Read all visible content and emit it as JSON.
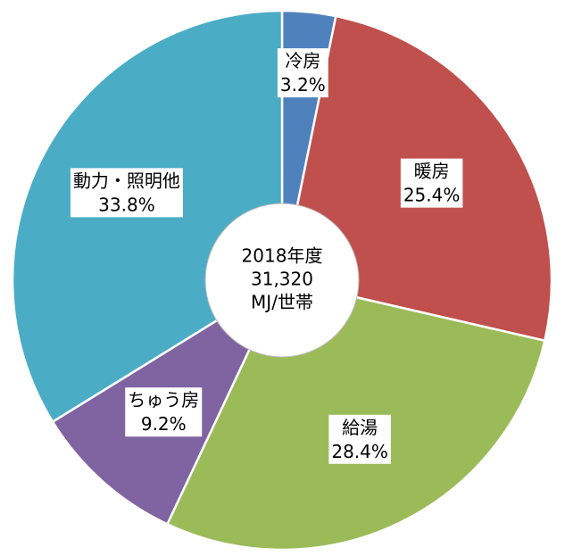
{
  "chart_data": {
    "type": "donut",
    "categories": [
      "冷房",
      "暖房",
      "給湯",
      "ちゅう房",
      "動力・照明他"
    ],
    "values": [
      3.2,
      25.4,
      28.4,
      9.2,
      33.8
    ],
    "value_labels": [
      "3.2%",
      "25.4%",
      "28.4%",
      "9.2%",
      "33.8%"
    ],
    "colors": [
      "#4f81bd",
      "#c0504d",
      "#9bbb59",
      "#8064a2",
      "#4bacc6"
    ],
    "center_label": [
      "2018年度",
      "31,320",
      "MJ/世帯"
    ]
  }
}
